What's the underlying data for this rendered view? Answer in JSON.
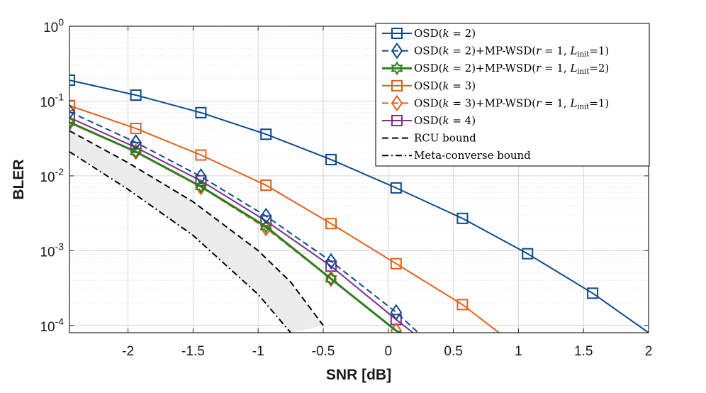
{
  "chart_data": {
    "type": "line",
    "title": "",
    "xlabel": "SNR [dB]",
    "ylabel": "BLER",
    "xlim": [
      -2.45,
      2.0
    ],
    "ylim": [
      8e-05,
      1.0
    ],
    "yscale": "log",
    "grid": true,
    "legend_position": "top-right",
    "x_ticks": [
      -2,
      -1.5,
      -1,
      -0.5,
      0,
      0.5,
      1,
      1.5,
      2
    ],
    "x_tick_labels": [
      "-2",
      "-1.5",
      "-1",
      "-0.5",
      "0",
      "0.5",
      "1",
      "1.5",
      "2"
    ],
    "y_ticks": [
      0.0001,
      0.001,
      0.01,
      0.1,
      1
    ],
    "y_tick_labels": [
      {
        "base": "10",
        "exp": "-4"
      },
      {
        "base": "10",
        "exp": "-3"
      },
      {
        "base": "10",
        "exp": "-2"
      },
      {
        "base": "10",
        "exp": "-1"
      },
      {
        "base": "10",
        "exp": "0"
      }
    ],
    "shaded_region": {
      "between": [
        "RCU bound",
        "Meta-converse bound"
      ],
      "color": "#ececec"
    },
    "series": [
      {
        "name": "OSD(k = 2)",
        "legend_parts": [
          [
            "OSD(",
            ""
          ],
          [
            "k",
            "i"
          ],
          [
            " = 2)",
            ""
          ]
        ],
        "color": "#0b4a8f",
        "style": "solid",
        "marker": "square",
        "width": 2,
        "x": [
          -2.45,
          -1.94,
          -1.44,
          -0.94,
          -0.44,
          0.06,
          0.57,
          1.07,
          1.57,
          2.0
        ],
        "y": [
          0.19,
          0.12,
          0.07,
          0.036,
          0.0165,
          0.0069,
          0.0027,
          0.00091,
          0.00027,
          8e-05
        ],
        "marker_x": [
          -2.45,
          -1.94,
          -1.44,
          -0.94,
          -0.44,
          0.06,
          0.57,
          1.07,
          1.57
        ]
      },
      {
        "name": "OSD(k = 2)+MP-WSD(r = 1, L_init=1)",
        "legend_parts": [
          [
            "OSD(",
            ""
          ],
          [
            "k",
            "i"
          ],
          [
            " = 2)+MP-WSD(",
            ""
          ],
          [
            "r",
            "i"
          ],
          [
            " = 1, ",
            ""
          ],
          [
            "L",
            "i"
          ],
          [
            "init",
            "s"
          ],
          [
            "=1)",
            ""
          ]
        ],
        "color": "#0b4a8f",
        "style": "dashed",
        "marker": "diamond",
        "width": 2,
        "x": [
          -2.45,
          -1.94,
          -1.44,
          -0.94,
          -0.44,
          0.06,
          0.23
        ],
        "y": [
          0.072,
          0.028,
          0.0098,
          0.0029,
          0.00072,
          0.00015,
          8e-05
        ],
        "marker_x": [
          -2.45,
          -1.94,
          -1.44,
          -0.94,
          -0.44,
          0.06
        ]
      },
      {
        "name": "OSD(k = 2)+MP-WSD(r = 1, L_init=2)",
        "legend_parts": [
          [
            "OSD(",
            ""
          ],
          [
            "k",
            "i"
          ],
          [
            " = 2)+MP-WSD(",
            ""
          ],
          [
            "r",
            "i"
          ],
          [
            " = 1, ",
            ""
          ],
          [
            "L",
            "i"
          ],
          [
            "init",
            "s"
          ],
          [
            "=2)",
            ""
          ]
        ],
        "color": "#2e7d1e",
        "style": "solid",
        "marker": "hexagram",
        "width": 3,
        "x": [
          -2.45,
          -1.94,
          -1.44,
          -0.94,
          -0.44,
          0.06,
          0.1
        ],
        "y": [
          0.052,
          0.021,
          0.0072,
          0.0021,
          0.00042,
          8.5e-05,
          8e-05
        ],
        "marker_x": [
          -2.45,
          -1.94,
          -1.44,
          -0.94,
          -0.44
        ]
      },
      {
        "name": "OSD(k = 3)",
        "legend_parts": [
          [
            "OSD(",
            ""
          ],
          [
            "k",
            "i"
          ],
          [
            " = 3)",
            ""
          ]
        ],
        "color": "#e0601b",
        "style": "solid",
        "marker": "square",
        "width": 2,
        "x": [
          -2.45,
          -1.94,
          -1.44,
          -0.94,
          -0.44,
          0.06,
          0.57,
          0.85
        ],
        "y": [
          0.087,
          0.043,
          0.019,
          0.0075,
          0.0023,
          0.00067,
          0.00019,
          8e-05
        ],
        "marker_x": [
          -2.45,
          -1.94,
          -1.44,
          -0.94,
          -0.44,
          0.06,
          0.57
        ]
      },
      {
        "name": "OSD(k = 3)+MP-WSD(r = 1, L_init=1)",
        "legend_parts": [
          [
            "OSD(",
            ""
          ],
          [
            "k",
            "i"
          ],
          [
            " = 3)+MP-WSD(",
            ""
          ],
          [
            "r",
            "i"
          ],
          [
            " = 1, ",
            ""
          ],
          [
            "L",
            "i"
          ],
          [
            "init",
            "s"
          ],
          [
            "=1)",
            ""
          ]
        ],
        "color": "#e0601b",
        "style": "dashed",
        "marker": "diamond",
        "width": 2,
        "x": [
          -2.45,
          -1.94,
          -1.44,
          -0.94,
          -0.44,
          0.06,
          0.09
        ],
        "y": [
          0.051,
          0.021,
          0.0071,
          0.002,
          0.00042,
          8.5e-05,
          8e-05
        ],
        "marker_x": [
          -2.45,
          -1.94,
          -1.44,
          -0.94,
          -0.44,
          0.06
        ]
      },
      {
        "name": "OSD(k = 4)",
        "legend_parts": [
          [
            "OSD(",
            ""
          ],
          [
            "k",
            "i"
          ],
          [
            " = 4)",
            ""
          ]
        ],
        "color": "#7e2f8e",
        "style": "solid",
        "marker": "square",
        "width": 2,
        "x": [
          -2.45,
          -1.94,
          -1.44,
          -0.94,
          -0.44,
          0.06,
          0.19
        ],
        "y": [
          0.06,
          0.024,
          0.0086,
          0.0025,
          0.00062,
          0.00012,
          8e-05
        ],
        "marker_x": [
          -2.45,
          -1.94,
          -1.44,
          -0.94,
          -0.44,
          0.06
        ]
      },
      {
        "name": "RCU bound",
        "legend_parts": [
          [
            "RCU bound",
            ""
          ]
        ],
        "color": "#000000",
        "style": "dashed",
        "marker": "none",
        "width": 2,
        "x": [
          -2.45,
          -2.0,
          -1.5,
          -1.0,
          -0.75,
          -0.5
        ],
        "y": [
          0.04,
          0.015,
          0.0045,
          0.001,
          0.00038,
          0.0001
        ]
      },
      {
        "name": "Meta-converse bound",
        "legend_parts": [
          [
            "Meta-converse bound",
            ""
          ]
        ],
        "color": "#000000",
        "style": "dashdot",
        "marker": "none",
        "width": 2,
        "x": [
          -2.45,
          -2.0,
          -1.5,
          -1.0,
          -0.75
        ],
        "y": [
          0.021,
          0.0066,
          0.0016,
          0.00026,
          8e-05
        ]
      }
    ]
  }
}
